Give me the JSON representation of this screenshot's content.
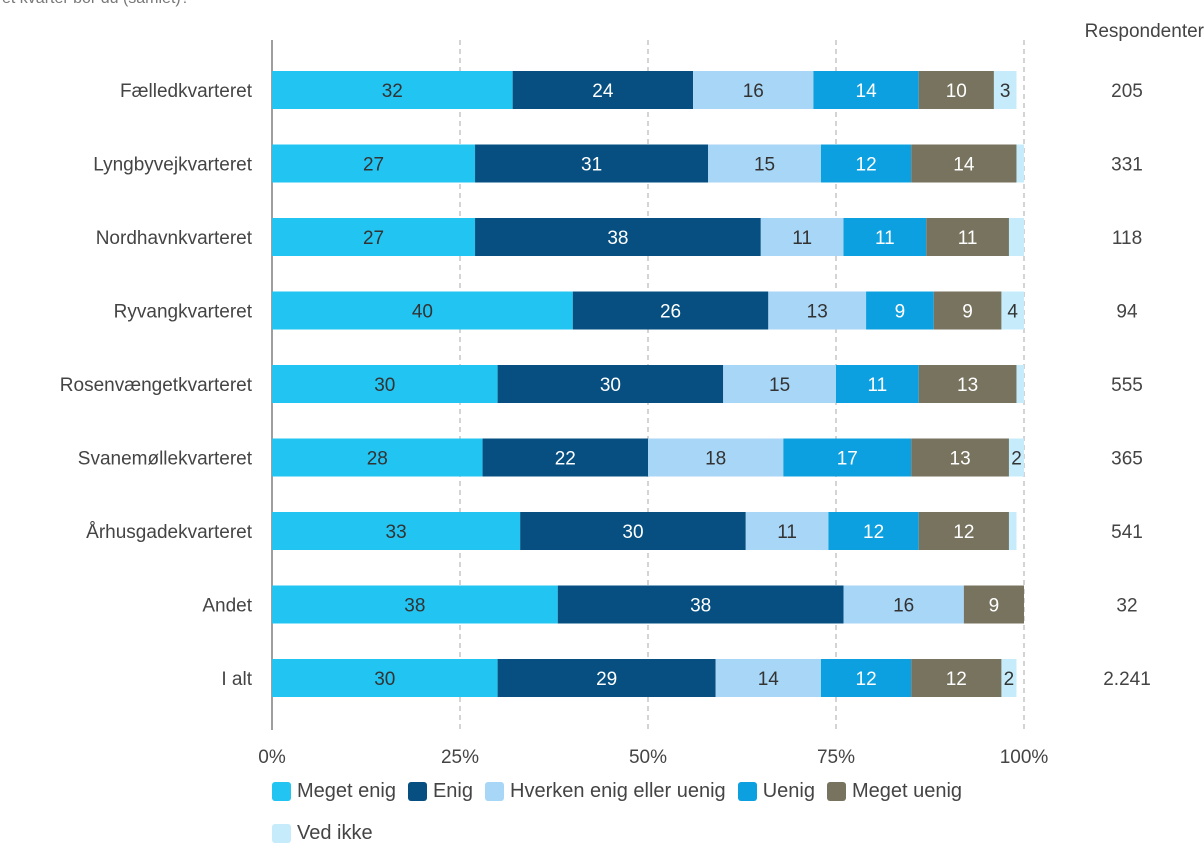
{
  "caption": "et kvarter bor du (samlet)?",
  "chart_data": {
    "type": "bar",
    "orientation": "horizontal",
    "stacked": true,
    "categories": [
      "Fælledkvarteret",
      "Lyngbyvejkvarteret",
      "Nordhavnkvarteret",
      "Ryvangkvarteret",
      "Rosenvængetkvarteret",
      "Svanemøllekvarteret",
      "Århusgadekvarteret",
      "Andet",
      "I alt"
    ],
    "series": [
      {
        "name": "Meget enig",
        "color": "#22C4F2",
        "values": [
          32,
          27,
          27,
          40,
          30,
          28,
          33,
          38,
          30
        ],
        "labels": [
          "32",
          "27",
          "27",
          "40",
          "30",
          "28",
          "33",
          "38",
          "30"
        ]
      },
      {
        "name": "Enig",
        "color": "#064F80",
        "values": [
          24,
          31,
          38,
          26,
          30,
          22,
          30,
          38,
          29
        ],
        "labels": [
          "24",
          "31",
          "38",
          "26",
          "30",
          "22",
          "30",
          "38",
          "29"
        ]
      },
      {
        "name": "Hverken enig eller uenig",
        "color": "#A8D6F7",
        "values": [
          16,
          15,
          11,
          13,
          15,
          18,
          11,
          16,
          14
        ],
        "labels": [
          "16",
          "15",
          "11",
          "13",
          "15",
          "18",
          "11",
          "16",
          "14"
        ]
      },
      {
        "name": "Uenig",
        "color": "#0DA0E0",
        "values": [
          14,
          12,
          11,
          9,
          11,
          17,
          12,
          0,
          12
        ],
        "labels": [
          "14",
          "12",
          "11",
          "9",
          "11",
          "17",
          "12",
          "",
          "12"
        ]
      },
      {
        "name": "Meget uenig",
        "color": "#77735F",
        "values": [
          10,
          14,
          11,
          9,
          13,
          13,
          12,
          9,
          12
        ],
        "labels": [
          "10",
          "14",
          "11",
          "9",
          "13",
          "13",
          "12",
          "9",
          "12"
        ]
      },
      {
        "name": "Ved ikke",
        "color": "#C6ECFB",
        "values": [
          3,
          1,
          2,
          4,
          2,
          2,
          1,
          0,
          2
        ],
        "labels": [
          "3",
          "",
          "",
          "4",
          "",
          "2",
          "",
          "",
          "2"
        ]
      }
    ],
    "xlim": [
      0,
      100
    ],
    "x_ticks": [
      "0%",
      "25%",
      "50%",
      "75%",
      "100%"
    ],
    "grid": "vertical dashed",
    "legend_position": "bottom",
    "respondents_header": "Respondenter",
    "respondents": [
      "205",
      "331",
      "118",
      "94",
      "555",
      "365",
      "541",
      "32",
      "2.241"
    ]
  }
}
